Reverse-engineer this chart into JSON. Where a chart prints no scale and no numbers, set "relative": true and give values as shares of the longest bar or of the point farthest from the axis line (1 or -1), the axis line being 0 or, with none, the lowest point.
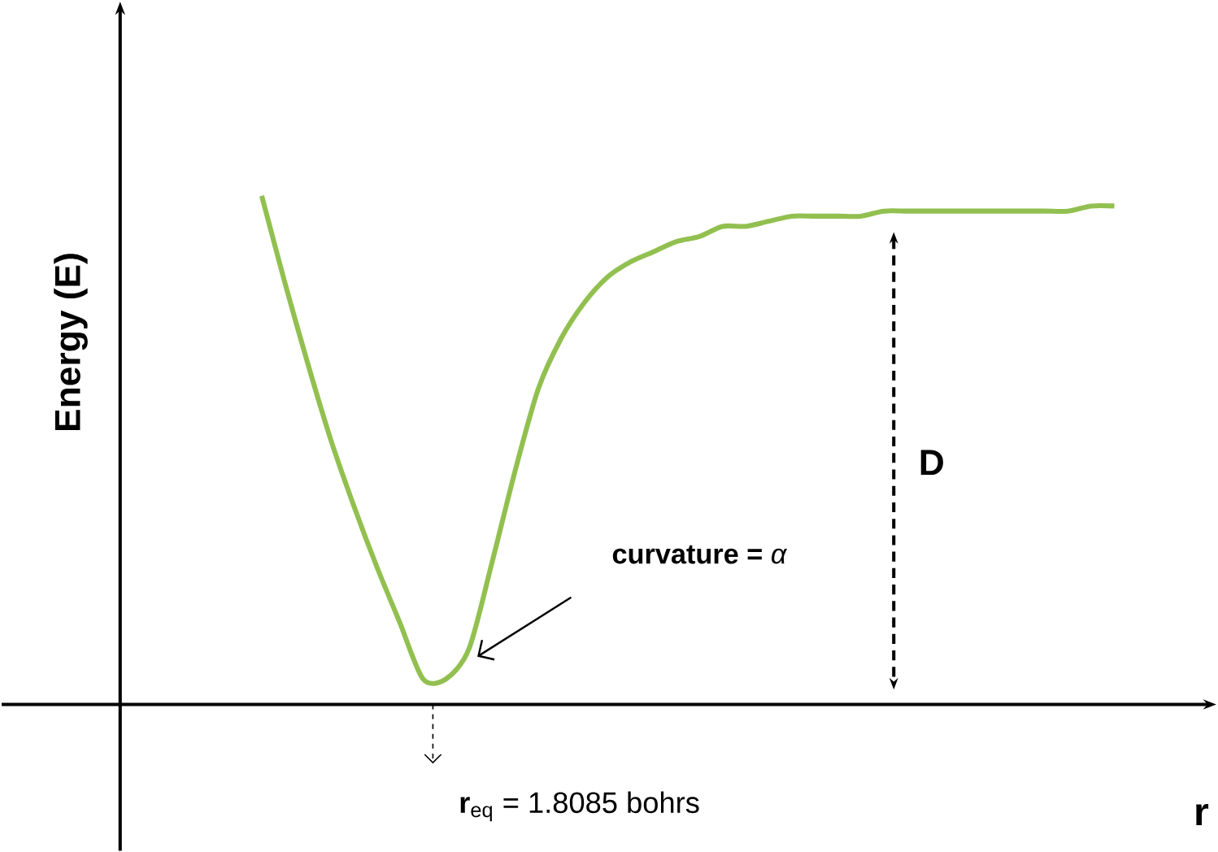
{
  "chart_data": {
    "type": "line",
    "relative": true,
    "xlabel": "r",
    "ylabel": "Energy (E)",
    "categories": [
      null,
      null,
      null,
      null,
      null,
      null,
      null,
      null,
      null,
      null,
      null,
      null,
      null,
      null,
      null,
      null,
      null,
      null,
      null,
      null,
      null,
      null,
      null,
      null,
      null,
      null,
      null,
      null,
      null,
      null,
      null,
      null,
      null,
      null,
      null,
      null,
      null,
      null
    ],
    "series": [
      {
        "color": "#92c050",
        "values": [
          1.0,
          0.83,
          0.67,
          0.52,
          0.39,
          0.27,
          0.16,
          0.05,
          0.05,
          0.11,
          0.28,
          0.46,
          0.62,
          0.72,
          0.79,
          0.84,
          0.87,
          0.89,
          0.91,
          0.92,
          0.94,
          0.94,
          0.95,
          0.96,
          0.96,
          0.96,
          0.96,
          0.97,
          0.97,
          0.97,
          0.97,
          0.97,
          0.97,
          0.97,
          0.97,
          0.97,
          0.98,
          0.98
        ]
      }
    ],
    "annotations": [
      "**curvature =** *α*",
      "**D**",
      "**r**$_{eq}$ = 1.8085 bohrs"
    ]
  }
}
